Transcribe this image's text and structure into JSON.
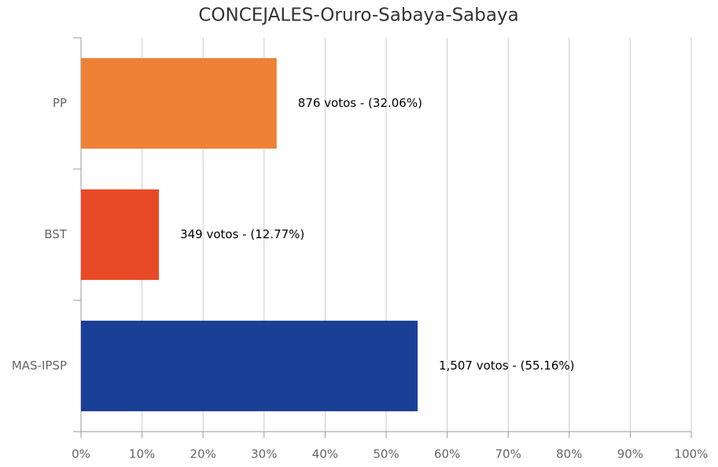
{
  "chart_data": {
    "type": "hbar",
    "title": "CONCEJALES-Oruro-Sabaya-Sabaya",
    "categories": [
      "PP",
      "BST",
      "MAS-IPSP"
    ],
    "values": [
      32.06,
      12.77,
      55.16
    ],
    "value_labels": [
      "876 votos - (32.06%)",
      "349 votos - (12.77%)",
      "1,507 votos - (55.16%)"
    ],
    "colors": [
      "#ee8136",
      "#e84a27",
      "#1a3f96"
    ],
    "xlim": [
      0,
      100
    ],
    "xticks": [
      {
        "value": 0,
        "label": "0%"
      },
      {
        "value": 10,
        "label": "10%"
      },
      {
        "value": 20,
        "label": "20%"
      },
      {
        "value": 30,
        "label": "30%"
      },
      {
        "value": 40,
        "label": "40%"
      },
      {
        "value": 50,
        "label": "50%"
      },
      {
        "value": 60,
        "label": "60%"
      },
      {
        "value": 70,
        "label": "70%"
      },
      {
        "value": 80,
        "label": "80%"
      },
      {
        "value": 90,
        "label": "90%"
      },
      {
        "value": 100,
        "label": "100%"
      }
    ],
    "grid": true
  }
}
